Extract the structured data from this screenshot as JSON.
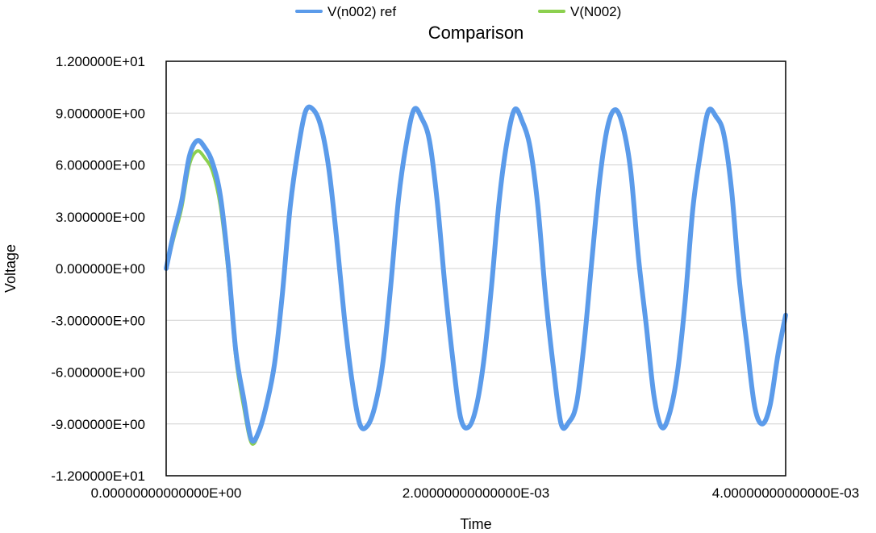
{
  "chart_data": {
    "type": "line",
    "title": "Comparison",
    "xlabel": "Time",
    "ylabel": "Voltage",
    "xlim": [
      0,
      0.004
    ],
    "ylim": [
      -12,
      12
    ],
    "grid": true,
    "legend_position": "top",
    "x_ticks": [
      {
        "value": 0,
        "label": "0.00000000000000E+00"
      },
      {
        "value": 0.002,
        "label": "2.00000000000000E-03"
      },
      {
        "value": 0.004,
        "label": "4.00000000000000E-03"
      }
    ],
    "y_ticks": [
      {
        "value": 12,
        "label": "1.200000E+01"
      },
      {
        "value": 9,
        "label": "9.000000E+00"
      },
      {
        "value": 6,
        "label": "6.000000E+00"
      },
      {
        "value": 3,
        "label": "3.000000E+00"
      },
      {
        "value": 0,
        "label": "0.000000E+00"
      },
      {
        "value": -3,
        "label": "-3.000000E+00"
      },
      {
        "value": -6,
        "label": "-6.000000E+00"
      },
      {
        "value": -9,
        "label": "-9.000000E+00"
      },
      {
        "value": -12,
        "label": "-1.200000E+01"
      }
    ],
    "series": [
      {
        "name": "V(n002) ref",
        "color": "#5b9bea",
        "x": [
          0,
          5e-05,
          0.0001,
          0.00015,
          0.0002,
          0.00025,
          0.0003,
          0.00035,
          0.0004,
          0.00045,
          0.0005,
          0.00055,
          0.0006,
          0.00065,
          0.0007,
          0.00075,
          0.0008,
          0.00085,
          0.0009,
          0.00095,
          0.001,
          0.00105,
          0.0011,
          0.00115,
          0.0012,
          0.00125,
          0.0013,
          0.00135,
          0.0014,
          0.00145,
          0.0015,
          0.00155,
          0.0016,
          0.00165,
          0.0017,
          0.00175,
          0.0018,
          0.00185,
          0.0019,
          0.00195,
          0.002,
          0.00205,
          0.0021,
          0.00215,
          0.0022,
          0.00225,
          0.0023,
          0.00235,
          0.0024,
          0.00245,
          0.0025,
          0.00255,
          0.0026,
          0.00265,
          0.0027,
          0.00275,
          0.0028,
          0.00285,
          0.0029,
          0.00295,
          0.003,
          0.00305,
          0.0031,
          0.00315,
          0.0032,
          0.00325,
          0.0033,
          0.00335,
          0.0034,
          0.00345,
          0.0035,
          0.00355,
          0.0036,
          0.00365,
          0.0037,
          0.00375,
          0.0038,
          0.00385,
          0.0039,
          0.00395,
          0.004
        ],
        "y": [
          0.0,
          2.1,
          3.9,
          6.5,
          7.4,
          7.0,
          6.1,
          4.2,
          0.3,
          -4.8,
          -7.5,
          -9.9,
          -9.4,
          -7.8,
          -5.5,
          -1.5,
          3.5,
          6.8,
          9.1,
          9.2,
          8.2,
          5.8,
          1.8,
          -2.8,
          -6.5,
          -9.0,
          -9.1,
          -7.9,
          -5.4,
          -1.0,
          4.0,
          7.2,
          9.2,
          8.7,
          7.4,
          3.9,
          -1.0,
          -5.2,
          -8.6,
          -9.2,
          -8.1,
          -5.4,
          -1.1,
          3.9,
          7.3,
          9.2,
          8.5,
          7.0,
          3.6,
          -1.6,
          -5.7,
          -9.0,
          -8.9,
          -7.8,
          -4.2,
          0.6,
          5.2,
          8.2,
          9.2,
          8.2,
          5.6,
          0.6,
          -3.3,
          -7.4,
          -9.2,
          -8.4,
          -6.1,
          -2.0,
          3.4,
          6.7,
          9.1,
          8.8,
          7.8,
          4.6,
          -0.6,
          -4.4,
          -8.0,
          -9.0,
          -7.9,
          -5.0,
          -2.7
        ]
      },
      {
        "name": "V(N002)",
        "color": "#8cd04f",
        "x": [
          0,
          5e-05,
          0.0001,
          0.00015,
          0.0002,
          0.00025,
          0.0003,
          0.00035,
          0.0004,
          0.00045,
          0.0005,
          0.00055,
          0.0006,
          0.00065,
          0.0007,
          0.00075,
          0.0008,
          0.00085,
          0.0009,
          0.00095,
          0.001,
          0.00105,
          0.0011,
          0.00115,
          0.0012,
          0.00125,
          0.0013,
          0.00135,
          0.0014,
          0.00145,
          0.0015,
          0.00155,
          0.0016,
          0.00165,
          0.0017,
          0.00175,
          0.0018,
          0.00185,
          0.0019,
          0.00195,
          0.002,
          0.00205,
          0.0021,
          0.00215,
          0.0022,
          0.00225,
          0.0023,
          0.00235,
          0.0024,
          0.00245,
          0.0025,
          0.00255,
          0.0026,
          0.00265,
          0.0027,
          0.00275,
          0.0028,
          0.00285,
          0.0029,
          0.00295,
          0.003,
          0.00305,
          0.0031,
          0.00315,
          0.0032,
          0.00325,
          0.0033,
          0.00335,
          0.0034,
          0.00345,
          0.0035,
          0.00355,
          0.0036,
          0.00365,
          0.0037,
          0.00375,
          0.0038,
          0.00385,
          0.0039,
          0.00395,
          0.004
        ],
        "y": [
          0.0,
          1.8,
          3.5,
          6.0,
          6.8,
          6.4,
          5.6,
          3.6,
          -0.2,
          -5.2,
          -8.0,
          -10.1,
          -9.5,
          -7.8,
          -5.5,
          -1.5,
          3.5,
          6.8,
          9.1,
          9.2,
          8.2,
          5.8,
          1.8,
          -2.8,
          -6.5,
          -9.0,
          -9.1,
          -7.9,
          -5.4,
          -1.0,
          4.0,
          7.2,
          9.2,
          8.7,
          7.4,
          3.9,
          -1.0,
          -5.2,
          -8.6,
          -9.2,
          -8.1,
          -5.4,
          -1.1,
          3.9,
          7.3,
          9.2,
          8.5,
          7.0,
          3.6,
          -1.6,
          -5.7,
          -9.0,
          -8.9,
          -7.8,
          -4.2,
          0.6,
          5.2,
          8.2,
          9.2,
          8.2,
          5.6,
          0.6,
          -3.3,
          -7.4,
          -9.2,
          -8.4,
          -6.1,
          -2.0,
          3.4,
          6.7,
          9.1,
          8.8,
          7.8,
          4.6,
          -0.6,
          -4.4,
          -8.0,
          -9.0,
          -7.9,
          -5.0,
          -2.7
        ]
      }
    ]
  }
}
